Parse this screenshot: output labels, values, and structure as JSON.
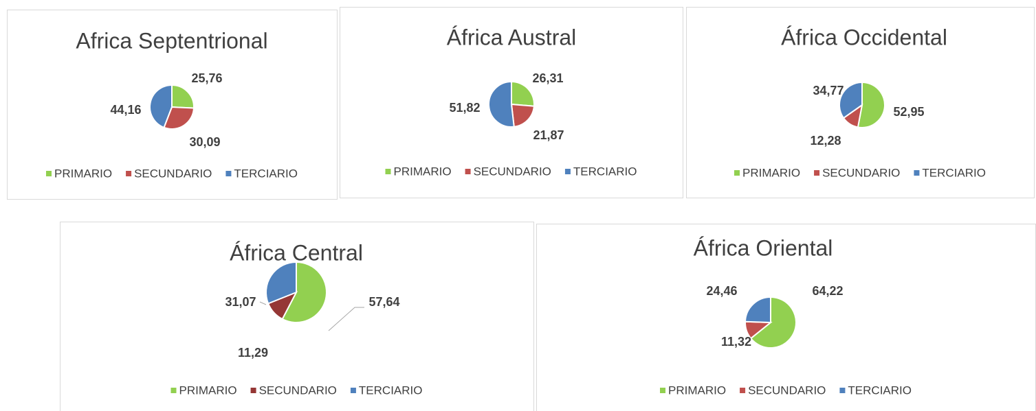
{
  "chart_data": [
    {
      "type": "pie",
      "title": "Africa Septentrional",
      "categories": [
        "PRIMARIO",
        "SECUNDARIO",
        "TERCIARIO"
      ],
      "values": [
        25.76,
        30.09,
        44.16
      ],
      "value_labels": [
        "25,76",
        "30,09",
        "44,16"
      ],
      "colors": [
        "#92d050",
        "#c0504d",
        "#4f81bd"
      ]
    },
    {
      "type": "pie",
      "title": "África Austral",
      "categories": [
        "PRIMARIO",
        "SECUNDARIO",
        "TERCIARIO"
      ],
      "values": [
        26.31,
        21.87,
        51.82
      ],
      "value_labels": [
        "26,31",
        "21,87",
        "51,82"
      ],
      "colors": [
        "#92d050",
        "#c0504d",
        "#4f81bd"
      ]
    },
    {
      "type": "pie",
      "title": "África Occidental",
      "categories": [
        "PRIMARIO",
        "SECUNDARIO",
        "TERCIARIO"
      ],
      "values": [
        52.95,
        12.28,
        34.77
      ],
      "value_labels": [
        "52,95",
        "12,28",
        "34,77"
      ],
      "colors": [
        "#92d050",
        "#c0504d",
        "#4f81bd"
      ]
    },
    {
      "type": "pie",
      "title": "África Central",
      "categories": [
        "PRIMARIO",
        "SECUNDARIO",
        "TERCIARIO"
      ],
      "values": [
        57.64,
        11.29,
        31.07
      ],
      "value_labels": [
        "57,64",
        "11,29",
        "31,07"
      ],
      "colors": [
        "#92d050",
        "#953735",
        "#4f81bd"
      ]
    },
    {
      "type": "pie",
      "title": "África Oriental",
      "categories": [
        "PRIMARIO",
        "SECUNDARIO",
        "TERCIARIO"
      ],
      "values": [
        64.22,
        11.32,
        24.46
      ],
      "value_labels": [
        "64,22",
        "11,32",
        "24,46"
      ],
      "colors": [
        "#92d050",
        "#c0504d",
        "#4f81bd"
      ]
    }
  ]
}
